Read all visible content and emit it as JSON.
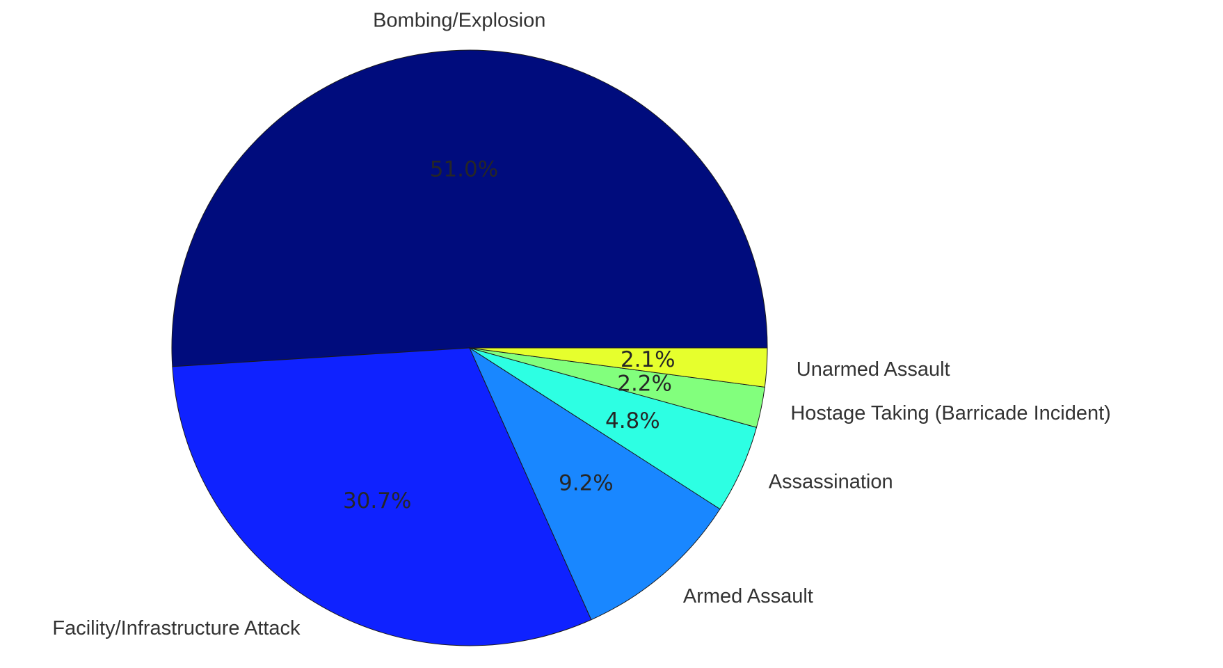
{
  "chart_data": {
    "type": "pie",
    "title": "",
    "start_angle_deg": 0,
    "direction": "counterclockwise",
    "edge_color": "#1a1a1a",
    "slices": [
      {
        "label": "Bombing/Explosion",
        "value": 51.0,
        "pct_label": "51.0%",
        "color": "#000c7d"
      },
      {
        "label": "Facility/Infrastructure Attack",
        "value": 30.7,
        "pct_label": "30.7%",
        "color": "#0f22ff"
      },
      {
        "label": "Armed Assault",
        "value": 9.2,
        "pct_label": "9.2%",
        "color": "#1987ff"
      },
      {
        "label": "Assassination",
        "value": 4.8,
        "pct_label": "4.8%",
        "color": "#2dffe3"
      },
      {
        "label": "Hostage Taking (Barricade Incident)",
        "value": 2.2,
        "pct_label": "2.2%",
        "color": "#82ff7d"
      },
      {
        "label": "Unarmed Assault",
        "value": 2.1,
        "pct_label": "2.1%",
        "color": "#e6ff2d"
      }
    ]
  }
}
